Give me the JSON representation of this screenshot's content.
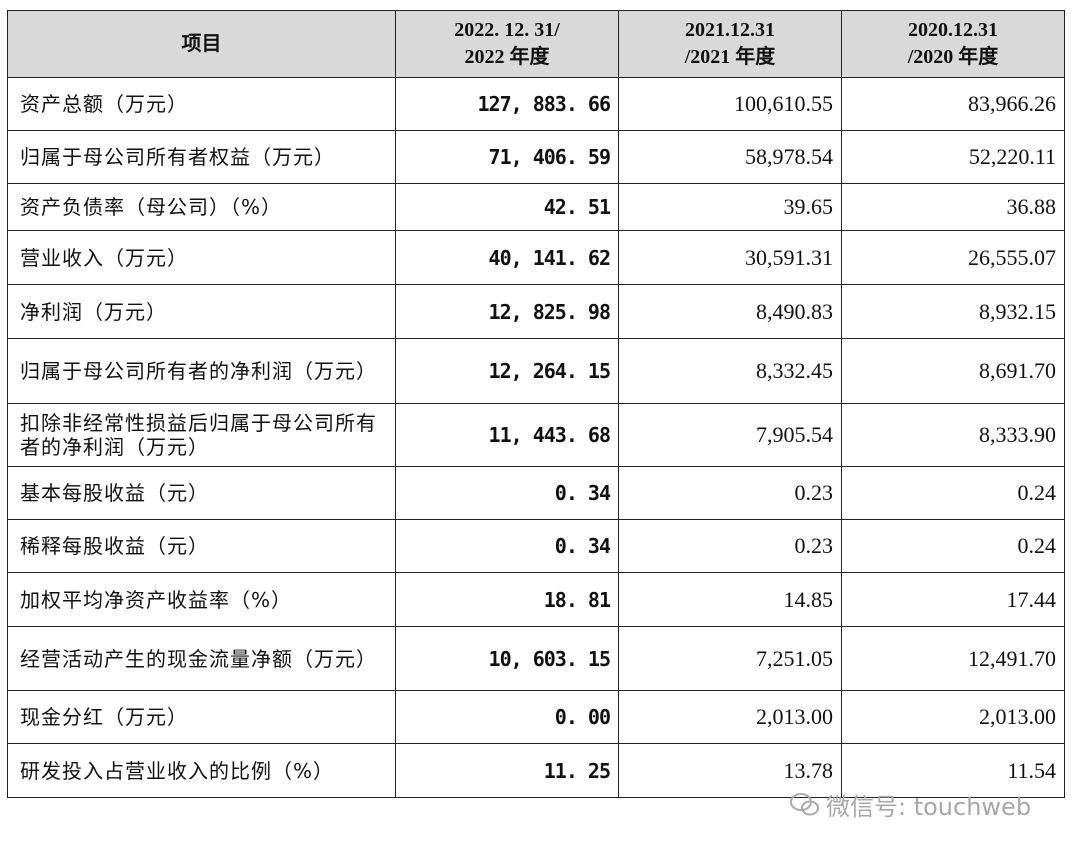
{
  "table": {
    "header": [
      [
        "项目"
      ],
      [
        "2022. 12. 31/",
        "2022 年度"
      ],
      [
        "2021.12.31",
        "/2021 年度"
      ],
      [
        "2020.12.31",
        "/2020 年度"
      ]
    ],
    "rows": [
      [
        "资产总额（万元）",
        "127, 883. 66",
        "100,610.55",
        "83,966.26"
      ],
      [
        "归属于母公司所有者权益（万元）",
        "71, 406. 59",
        "58,978.54",
        "52,220.11"
      ],
      [
        "资产负债率（母公司）（%）",
        "42. 51",
        "39.65",
        "36.88"
      ],
      [
        "营业收入（万元）",
        "40, 141. 62",
        "30,591.31",
        "26,555.07"
      ],
      [
        "净利润（万元）",
        "12, 825. 98",
        "8,490.83",
        "8,932.15"
      ],
      [
        "归属于母公司所有者的净利润（万元）",
        "12, 264. 15",
        "8,332.45",
        "8,691.70"
      ],
      [
        "扣除非经常性损益后归属于母公司所有者的净利润（万元）",
        "11, 443. 68",
        "7,905.54",
        "8,333.90"
      ],
      [
        "基本每股收益（元）",
        "0. 34",
        "0.23",
        "0.24"
      ],
      [
        "稀释每股收益（元）",
        "0. 34",
        "0.23",
        "0.24"
      ],
      [
        "加权平均净资产收益率（%）",
        "18. 81",
        "14.85",
        "17.44"
      ],
      [
        "经营活动产生的现金流量净额（万元）",
        "10, 603. 15",
        "7,251.05",
        "12,491.70"
      ],
      [
        "现金分红（万元）",
        "0. 00",
        "2,013.00",
        "2,013.00"
      ],
      [
        "研发投入占营业收入的比例（%）",
        "11. 25",
        "13.78",
        "11.54"
      ]
    ]
  },
  "watermark": "微信号: touchweb"
}
